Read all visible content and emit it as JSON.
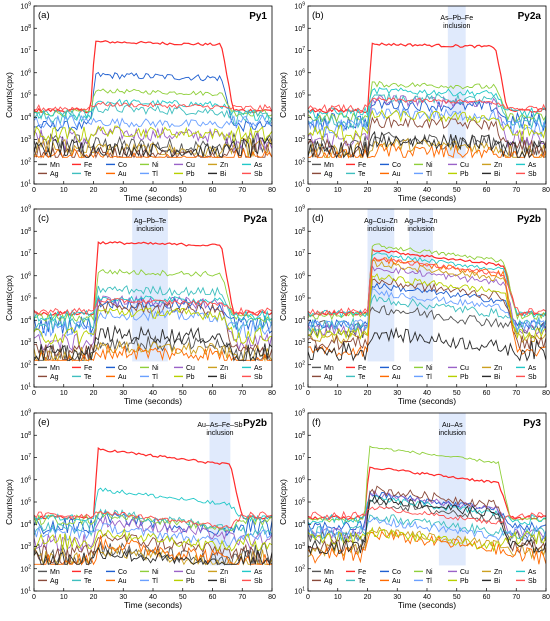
{
  "chart_data": {
    "type": "line",
    "xlabel": "Time (seconds)",
    "ylabel": "Counts(cpx)",
    "x_ticks": [
      0,
      10,
      20,
      30,
      40,
      50,
      60,
      70,
      80
    ],
    "y_ticks": [
      "10^1",
      "10^2",
      "10^3",
      "10^4",
      "10^5",
      "10^6",
      "10^7",
      "10^8",
      "10^9"
    ],
    "y_tick_exponents": [
      1,
      2,
      3,
      4,
      5,
      6,
      7,
      8,
      9
    ],
    "xlim": [
      0,
      80
    ],
    "ylim": [
      10,
      1000000000
    ],
    "y_scale": "log",
    "legend_placement": "bottom",
    "series": [
      {
        "name": "Mn",
        "color": "#555555"
      },
      {
        "name": "Fe",
        "color": "#ff2a2a"
      },
      {
        "name": "Co",
        "color": "#1f5fd0"
      },
      {
        "name": "Ni",
        "color": "#8fcf3a"
      },
      {
        "name": "Cu",
        "color": "#9a62c8"
      },
      {
        "name": "Zn",
        "color": "#cca020"
      },
      {
        "name": "As",
        "color": "#22c8c8"
      },
      {
        "name": "Ag",
        "color": "#8a4a3a"
      },
      {
        "name": "Te",
        "color": "#3fbfbf"
      },
      {
        "name": "Au",
        "color": "#ff6a00"
      },
      {
        "name": "Tl",
        "color": "#6aa0ff"
      },
      {
        "name": "Pb",
        "color": "#b8d000"
      },
      {
        "name": "Bi",
        "color": "#2a2a2a"
      },
      {
        "name": "Sb",
        "color": "#ff5050"
      }
    ],
    "panels": [
      {
        "label": "(a)",
        "title": "Py1",
        "inclusions": []
      },
      {
        "label": "(b)",
        "title": "Py2a",
        "inclusions": [
          {
            "text": "As–Pb–Fe inclusion",
            "x_range": [
              47,
              53
            ]
          }
        ]
      },
      {
        "label": "(c)",
        "title": "Py2a",
        "inclusions": [
          {
            "text": "Ag–Pb–Te inclusion",
            "x_range": [
              33,
              45
            ]
          }
        ]
      },
      {
        "label": "(d)",
        "title": "Py2b",
        "inclusions": [
          {
            "text": "Ag–Cu–Zn inclusion",
            "x_range": [
              20,
              29
            ]
          },
          {
            "text": "Ag–Pb–Zn inclusion",
            "x_range": [
              34,
              42
            ]
          }
        ]
      },
      {
        "label": "(e)",
        "title": "Py2b",
        "inclusions": [
          {
            "text": "Au–As–Fe–Sb inclusion",
            "x_range": [
              59,
              66
            ]
          }
        ]
      },
      {
        "label": "(f)",
        "title": "Py3",
        "inclusions": [
          {
            "text": "Au–As inclusion",
            "x_range": [
              44,
              53
            ]
          }
        ]
      }
    ]
  }
}
